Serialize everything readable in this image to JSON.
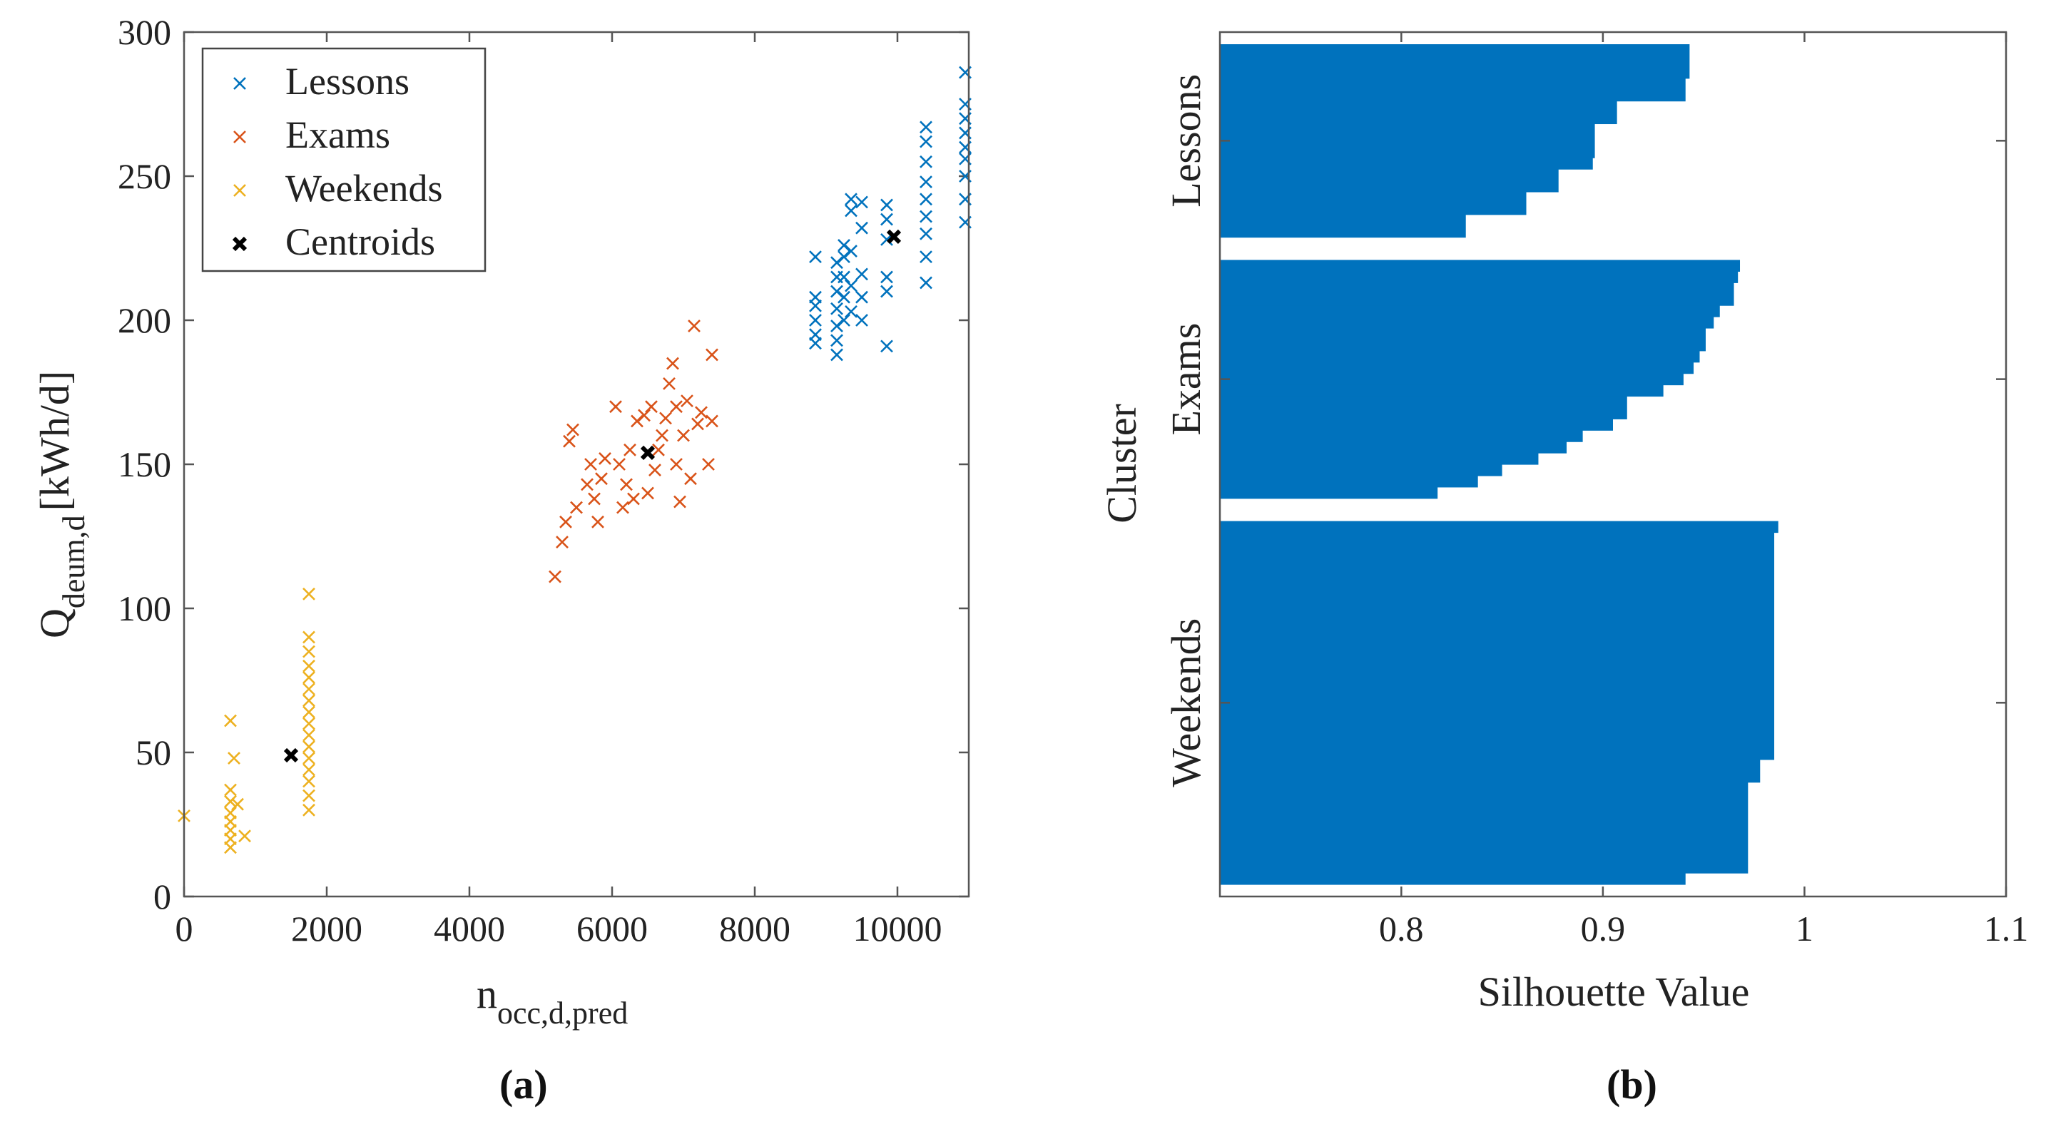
{
  "chart_data": [
    {
      "type": "scatter",
      "panel_label": "(a)",
      "xlabel": {
        "main": "n",
        "sub": "occ,d,pred"
      },
      "ylabel": {
        "main": "Q",
        "sub": "deum,d",
        "unit": "[kWh/d]"
      },
      "xlim": [
        0,
        11000
      ],
      "ylim": [
        0,
        300
      ],
      "xticks": [
        0,
        2000,
        4000,
        6000,
        8000,
        10000
      ],
      "yticks": [
        0,
        50,
        100,
        150,
        200,
        250,
        300
      ],
      "legend_position": "top-left",
      "series": [
        {
          "name": "Lessons",
          "color": "#0072BD",
          "marker": "x",
          "points": [
            [
              8850,
              192
            ],
            [
              8850,
              195
            ],
            [
              8850,
              200
            ],
            [
              8850,
              205
            ],
            [
              8850,
              208
            ],
            [
              8850,
              222
            ],
            [
              9150,
              188
            ],
            [
              9150,
              193
            ],
            [
              9150,
              198
            ],
            [
              9150,
              204
            ],
            [
              9150,
              210
            ],
            [
              9150,
              215
            ],
            [
              9150,
              220
            ],
            [
              9250,
              200
            ],
            [
              9250,
              208
            ],
            [
              9250,
              215
            ],
            [
              9250,
              222
            ],
            [
              9250,
              226
            ],
            [
              9350,
              203
            ],
            [
              9350,
              212
            ],
            [
              9350,
              224
            ],
            [
              9350,
              238
            ],
            [
              9350,
              242
            ],
            [
              9500,
              200
            ],
            [
              9500,
              208
            ],
            [
              9500,
              216
            ],
            [
              9500,
              232
            ],
            [
              9500,
              241
            ],
            [
              9850,
              191
            ],
            [
              9850,
              210
            ],
            [
              9850,
              215
            ],
            [
              9850,
              228
            ],
            [
              9850,
              235
            ],
            [
              9850,
              240
            ],
            [
              10400,
              213
            ],
            [
              10400,
              222
            ],
            [
              10400,
              230
            ],
            [
              10400,
              236
            ],
            [
              10400,
              242
            ],
            [
              10400,
              248
            ],
            [
              10400,
              255
            ],
            [
              10400,
              262
            ],
            [
              10400,
              267
            ],
            [
              10950,
              234
            ],
            [
              10950,
              242
            ],
            [
              10950,
              250
            ],
            [
              10950,
              256
            ],
            [
              10950,
              260
            ],
            [
              10950,
              265
            ],
            [
              10950,
              270
            ],
            [
              10950,
              275
            ],
            [
              10950,
              286
            ]
          ]
        },
        {
          "name": "Exams",
          "color": "#D95319",
          "marker": "x",
          "points": [
            [
              5200,
              111
            ],
            [
              5300,
              123
            ],
            [
              5350,
              130
            ],
            [
              5400,
              158
            ],
            [
              5450,
              162
            ],
            [
              5500,
              135
            ],
            [
              5650,
              143
            ],
            [
              5700,
              150
            ],
            [
              5750,
              138
            ],
            [
              5800,
              130
            ],
            [
              5850,
              145
            ],
            [
              5900,
              152
            ],
            [
              6100,
              150
            ],
            [
              6150,
              135
            ],
            [
              6200,
              143
            ],
            [
              6250,
              155
            ],
            [
              6300,
              138
            ],
            [
              6450,
              167
            ],
            [
              6500,
              140
            ],
            [
              6600,
              148
            ],
            [
              6650,
              155
            ],
            [
              6700,
              160
            ],
            [
              6750,
              166
            ],
            [
              6800,
              178
            ],
            [
              6850,
              185
            ],
            [
              6900,
              150
            ],
            [
              6950,
              137
            ],
            [
              7000,
              160
            ],
            [
              7050,
              172
            ],
            [
              7100,
              145
            ],
            [
              7150,
              198
            ],
            [
              7200,
              164
            ],
            [
              7250,
              168
            ],
            [
              7350,
              150
            ],
            [
              7400,
              165
            ],
            [
              7400,
              188
            ],
            [
              6050,
              170
            ],
            [
              6350,
              165
            ],
            [
              6550,
              170
            ],
            [
              6900,
              170
            ]
          ]
        },
        {
          "name": "Weekends",
          "color": "#EDB120",
          "marker": "x",
          "points": [
            [
              0,
              28
            ],
            [
              650,
              17
            ],
            [
              650,
              20
            ],
            [
              650,
              23
            ],
            [
              650,
              26
            ],
            [
              650,
              29
            ],
            [
              650,
              33
            ],
            [
              650,
              37
            ],
            [
              650,
              61
            ],
            [
              700,
              48
            ],
            [
              850,
              21
            ],
            [
              750,
              32
            ],
            [
              1750,
              30
            ],
            [
              1750,
              35
            ],
            [
              1750,
              40
            ],
            [
              1750,
              44
            ],
            [
              1750,
              48
            ],
            [
              1750,
              52
            ],
            [
              1750,
              56
            ],
            [
              1750,
              60
            ],
            [
              1750,
              64
            ],
            [
              1750,
              68
            ],
            [
              1750,
              72
            ],
            [
              1750,
              76
            ],
            [
              1750,
              80
            ],
            [
              1750,
              85
            ],
            [
              1750,
              90
            ],
            [
              1750,
              105
            ]
          ]
        },
        {
          "name": "Centroids",
          "color": "#000000",
          "marker": "x-bold",
          "points": [
            [
              1500,
              49
            ],
            [
              6500,
              154
            ],
            [
              9950,
              229
            ]
          ]
        }
      ]
    },
    {
      "type": "bar",
      "orientation": "horizontal",
      "panel_label": "(b)",
      "xlabel": "Silhouette Value",
      "ylabel": "Cluster",
      "xlim": [
        0.71,
        1.1
      ],
      "xticks": [
        0.8,
        0.9,
        1,
        1.1
      ],
      "xtick_labels": [
        "0.8",
        "0.9",
        "1",
        "1.1"
      ],
      "bar_color": "#0072BD",
      "clusters": [
        {
          "name": "Lessons",
          "bars": [
            {
              "value": 0.943,
              "count": 3
            },
            {
              "value": 0.941,
              "count": 2
            },
            {
              "value": 0.907,
              "count": 2
            },
            {
              "value": 0.896,
              "count": 3
            },
            {
              "value": 0.895,
              "count": 1
            },
            {
              "value": 0.878,
              "count": 2
            },
            {
              "value": 0.862,
              "count": 2
            },
            {
              "value": 0.832,
              "count": 2
            }
          ]
        },
        {
          "name": "Exams",
          "bars": [
            {
              "value": 0.968,
              "count": 1
            },
            {
              "value": 0.967,
              "count": 1
            },
            {
              "value": 0.965,
              "count": 2
            },
            {
              "value": 0.958,
              "count": 1
            },
            {
              "value": 0.955,
              "count": 1
            },
            {
              "value": 0.951,
              "count": 2
            },
            {
              "value": 0.948,
              "count": 1
            },
            {
              "value": 0.945,
              "count": 1
            },
            {
              "value": 0.94,
              "count": 1
            },
            {
              "value": 0.93,
              "count": 1
            },
            {
              "value": 0.912,
              "count": 2
            },
            {
              "value": 0.905,
              "count": 1
            },
            {
              "value": 0.89,
              "count": 1
            },
            {
              "value": 0.882,
              "count": 1
            },
            {
              "value": 0.868,
              "count": 1
            },
            {
              "value": 0.85,
              "count": 1
            },
            {
              "value": 0.838,
              "count": 1
            },
            {
              "value": 0.818,
              "count": 1
            }
          ]
        },
        {
          "name": "Weekends",
          "bars": [
            {
              "value": 0.987,
              "count": 1
            },
            {
              "value": 0.985,
              "count": 20
            },
            {
              "value": 0.978,
              "count": 2
            },
            {
              "value": 0.972,
              "count": 8
            },
            {
              "value": 0.941,
              "count": 1
            }
          ]
        }
      ]
    }
  ]
}
